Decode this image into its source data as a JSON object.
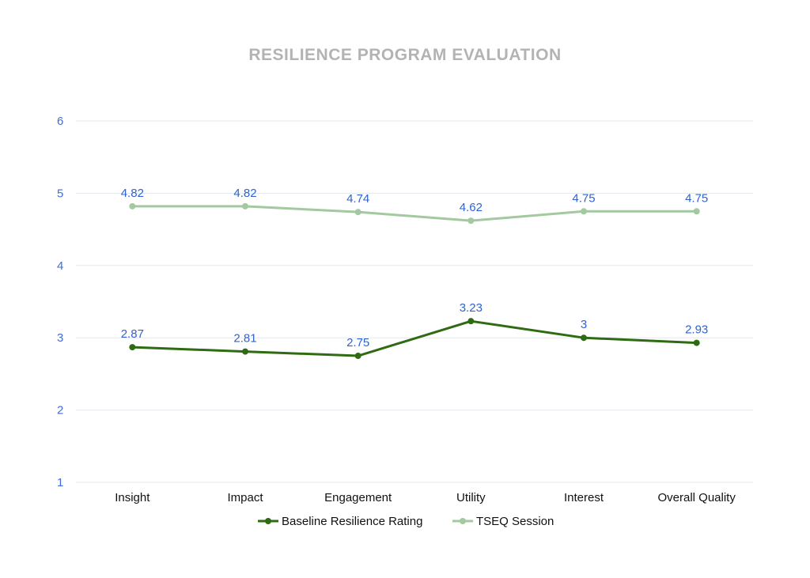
{
  "chart_data": {
    "type": "line",
    "title": "RESILIENCE PROGRAM EVALUATION",
    "categories": [
      "Insight",
      "Impact",
      "Engagement",
      "Utility",
      "Interest",
      "Overall Quality"
    ],
    "ylim": [
      1,
      6
    ],
    "yticks": [
      1,
      2,
      3,
      4,
      5,
      6
    ],
    "grid": true,
    "legend_position": "bottom",
    "series": [
      {
        "name": "Baseline Resilience Rating",
        "color": "#2e6b12",
        "values": [
          2.87,
          2.81,
          2.75,
          3.23,
          3,
          2.93
        ],
        "labels": [
          "2.87",
          "2.81",
          "2.75",
          "3.23",
          "3",
          "2.93"
        ]
      },
      {
        "name": "TSEQ Session",
        "color": "#a3c9a0",
        "values": [
          4.82,
          4.82,
          4.74,
          4.62,
          4.75,
          4.75
        ],
        "labels": [
          "4.82",
          "4.82",
          "4.74",
          "4.62",
          "4.75",
          "4.75"
        ]
      }
    ]
  }
}
